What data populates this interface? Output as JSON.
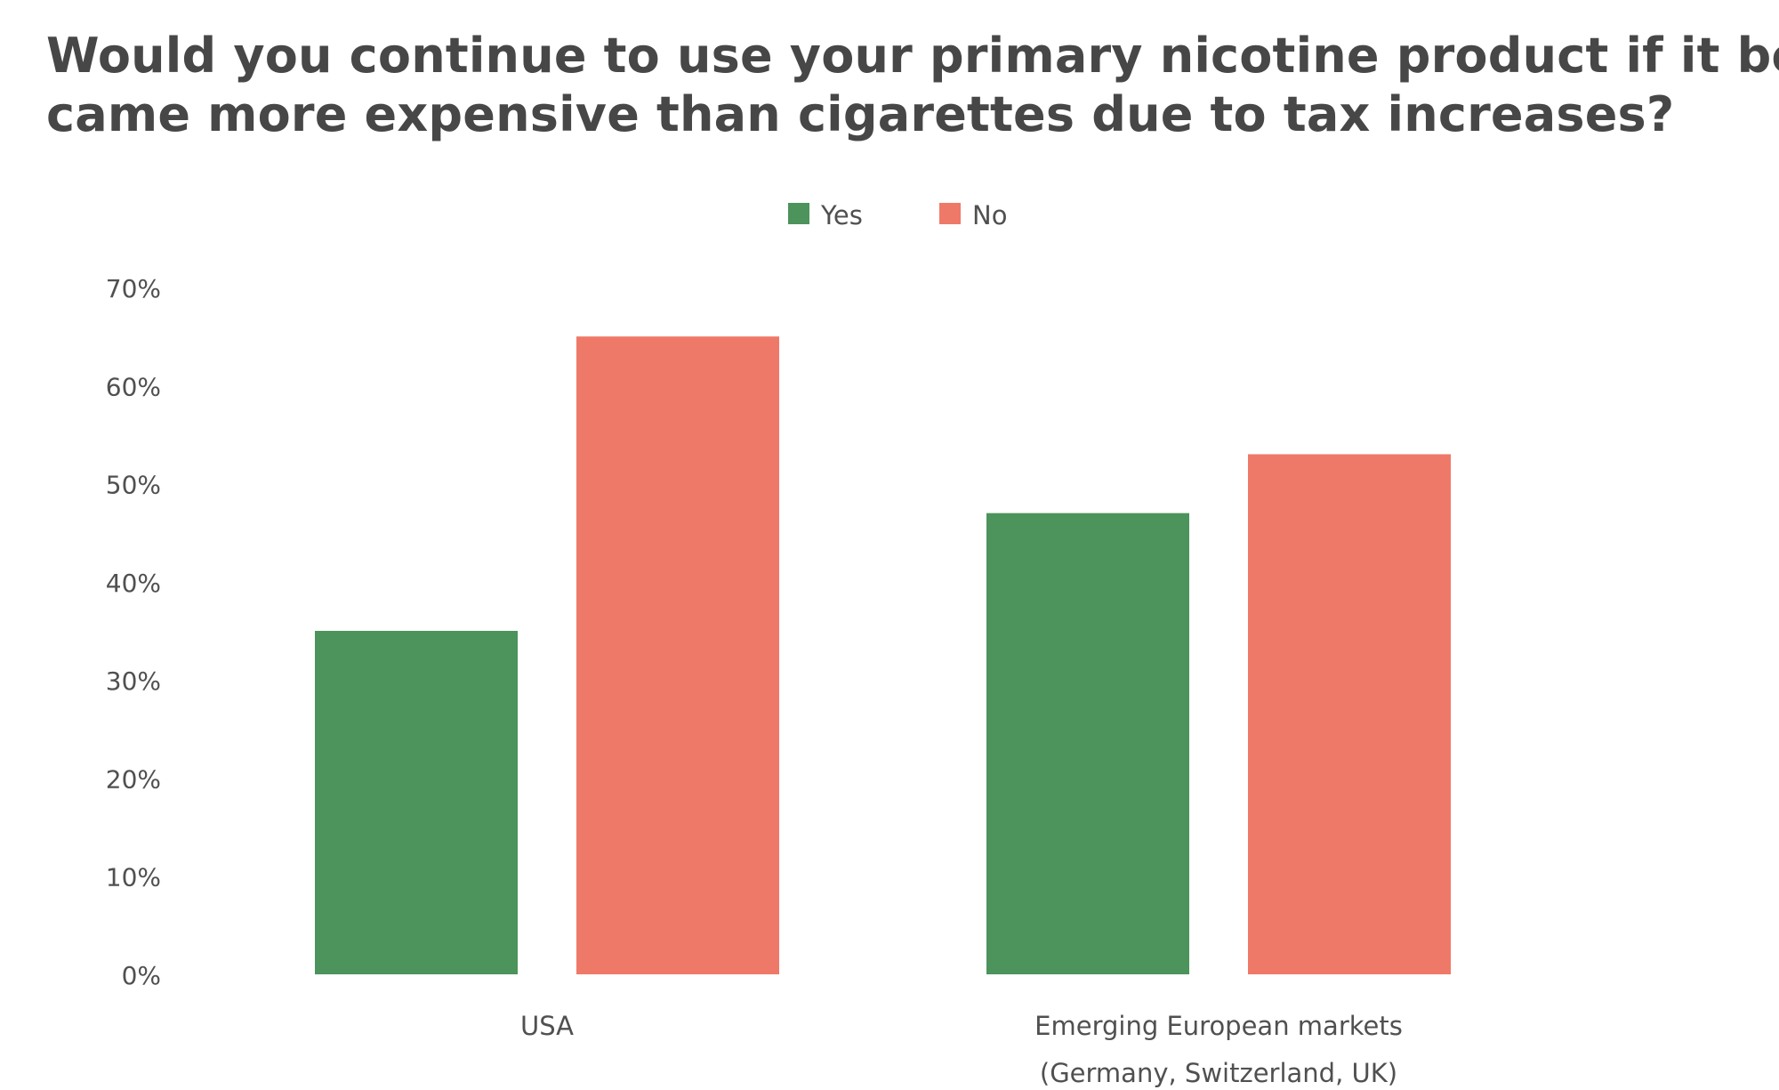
{
  "chart_data": {
    "type": "bar",
    "title_lines": [
      "Would you continue to use your primary nicotine product if it be-",
      "came more expensive than cigarettes due to tax increases?"
    ],
    "categories": [
      [
        "USA"
      ],
      [
        "Emerging European markets",
        "(Germany, Switzerland, UK)"
      ]
    ],
    "series": [
      {
        "name": "Yes",
        "color": "#4c935c",
        "values": [
          35,
          47
        ]
      },
      {
        "name": "No",
        "color": "#ef7968",
        "values": [
          65,
          53
        ]
      }
    ],
    "y_ticks": [
      "0%",
      "10%",
      "20%",
      "30%",
      "40%",
      "50%",
      "60%",
      "70%"
    ],
    "ylim": [
      0,
      70
    ],
    "legend": "top-center",
    "grid": false
  }
}
